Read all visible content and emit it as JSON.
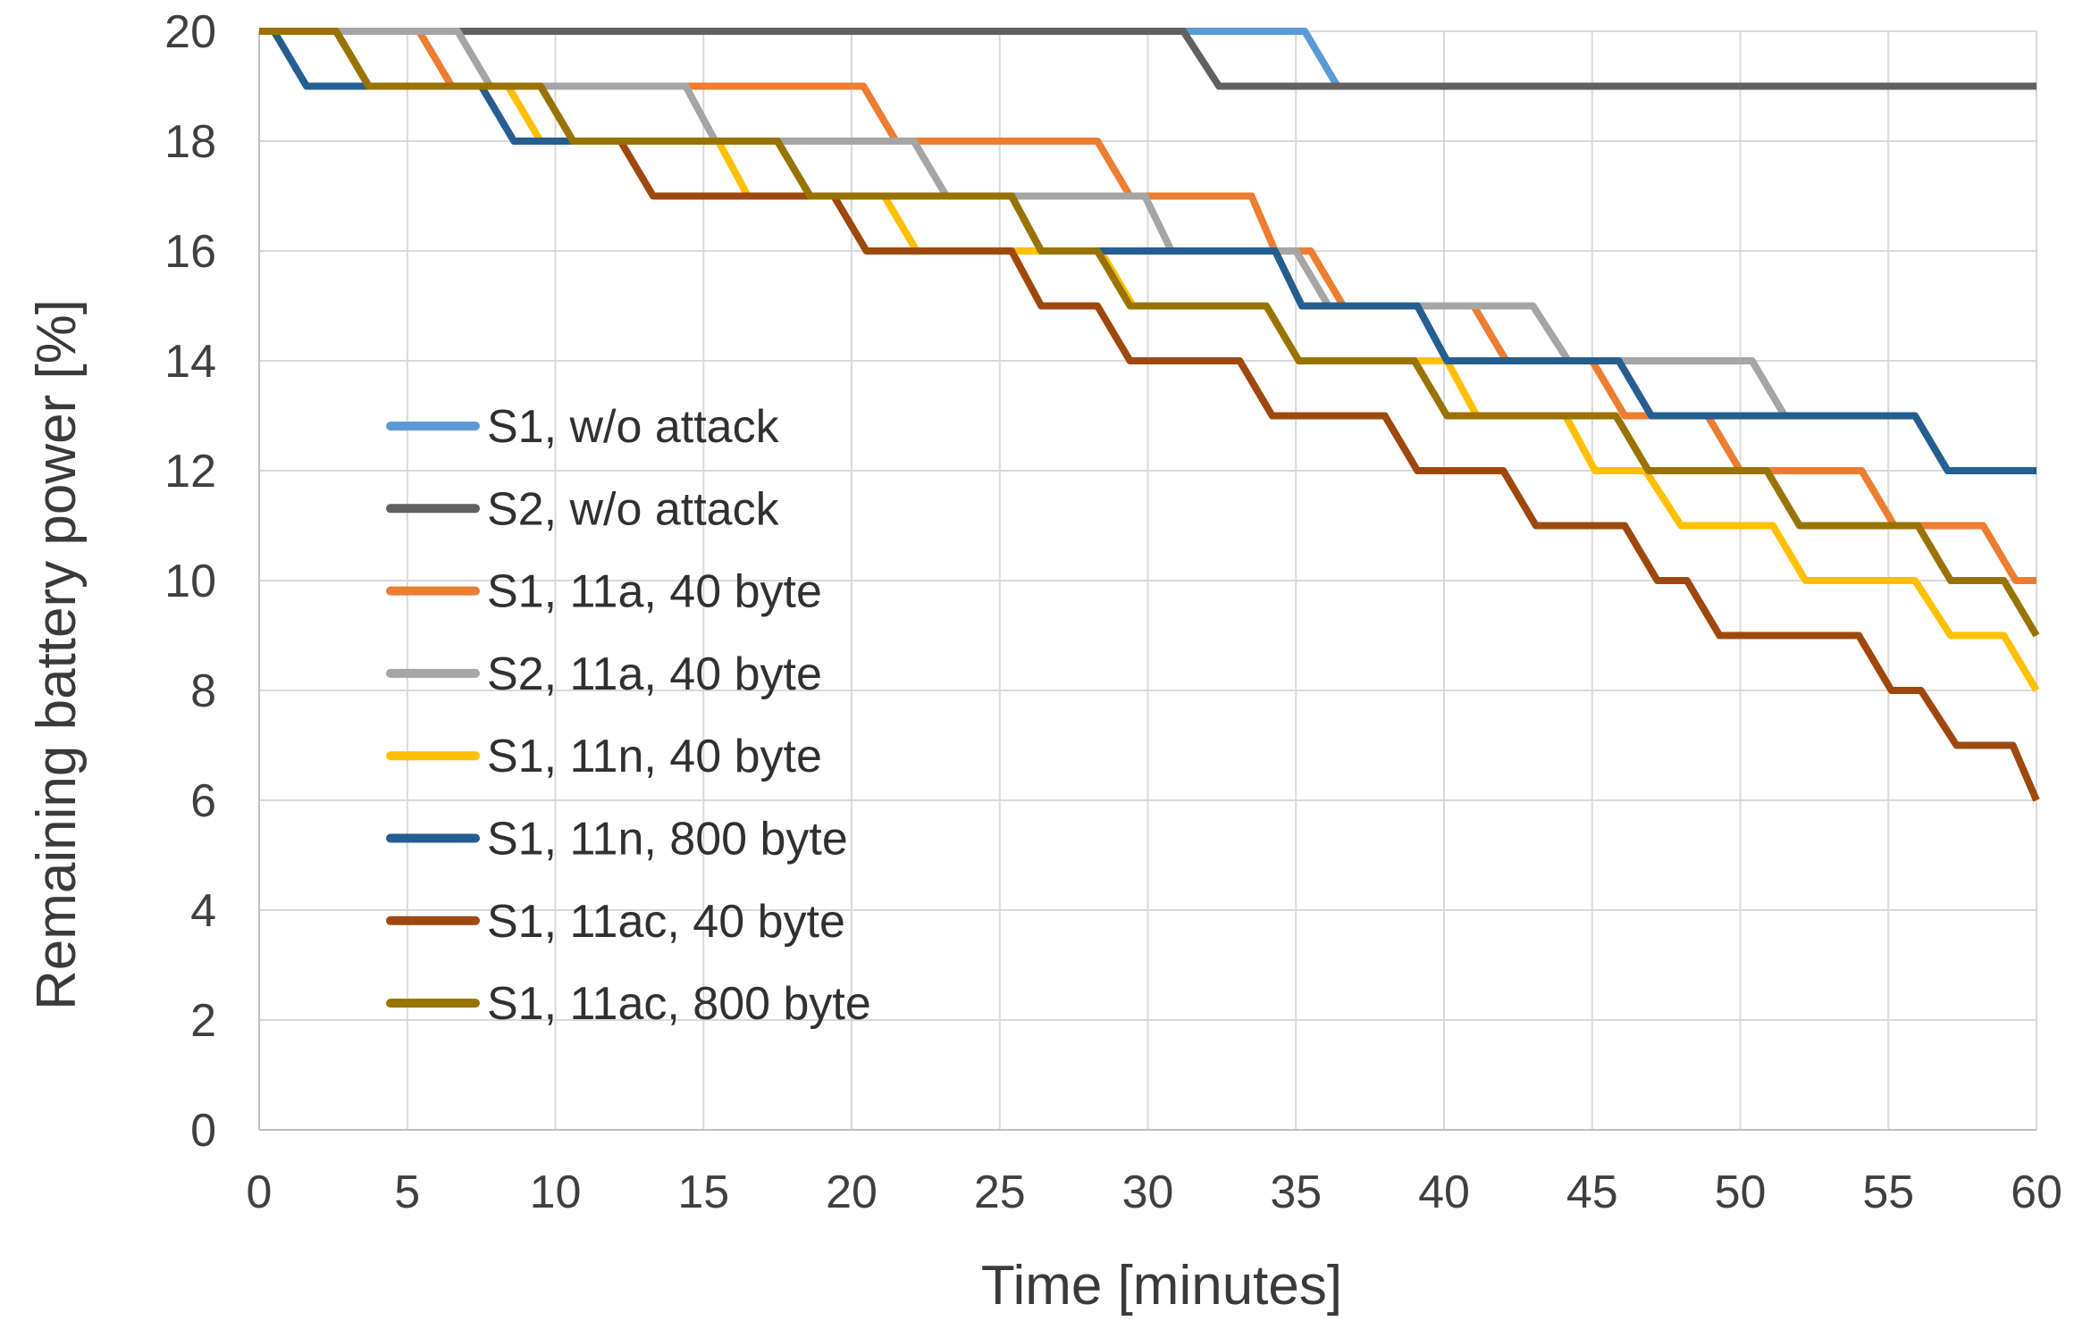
{
  "chart_data": {
    "type": "line",
    "title": "",
    "xlabel": "Time [minutes]",
    "ylabel": "Remaining battery power [%]",
    "xlim": [
      0,
      60
    ],
    "ylim": [
      0,
      20
    ],
    "grid": true,
    "legend_position": "inside-left",
    "x_tick_values": [
      0,
      5,
      10,
      15,
      20,
      25,
      30,
      35,
      40,
      45,
      50,
      55,
      60
    ],
    "x_ticks": [
      "0",
      "5",
      "10",
      "15",
      "20",
      "25",
      "30",
      "35",
      "40",
      "45",
      "50",
      "55",
      "60"
    ],
    "y_tick_values": [
      0,
      2,
      4,
      6,
      8,
      10,
      12,
      14,
      16,
      18,
      20
    ],
    "y_ticks": [
      "0",
      "2",
      "4",
      "6",
      "8",
      "10",
      "12",
      "14",
      "16",
      "18",
      "20"
    ],
    "series": [
      {
        "name": "S1, w/o attack",
        "color": "#5B9BD5",
        "points": [
          [
            0,
            20
          ],
          [
            35.3,
            20
          ],
          [
            36.4,
            19
          ],
          [
            60,
            19
          ]
        ]
      },
      {
        "name": "S2, w/o attack",
        "color": "#616161",
        "points": [
          [
            0,
            20
          ],
          [
            31.2,
            20
          ],
          [
            32.4,
            19
          ],
          [
            60,
            19
          ]
        ]
      },
      {
        "name": "S1, 11a, 40 byte",
        "color": "#ED7D31",
        "points": [
          [
            0,
            20
          ],
          [
            5.4,
            20
          ],
          [
            6.5,
            19
          ],
          [
            20.4,
            19
          ],
          [
            21.5,
            18
          ],
          [
            28.3,
            18
          ],
          [
            29.4,
            17
          ],
          [
            33.5,
            17
          ],
          [
            34.3,
            16
          ],
          [
            35.5,
            16
          ],
          [
            36.6,
            15
          ],
          [
            41,
            15
          ],
          [
            42.1,
            14
          ],
          [
            45,
            14
          ],
          [
            46.1,
            13
          ],
          [
            48.9,
            13
          ],
          [
            50,
            12
          ],
          [
            54.1,
            12
          ],
          [
            55.2,
            11
          ],
          [
            58.2,
            11
          ],
          [
            59.3,
            10
          ],
          [
            60,
            10
          ]
        ]
      },
      {
        "name": "S2, 11a, 40 byte",
        "color": "#A5A5A5",
        "points": [
          [
            0,
            20
          ],
          [
            6.7,
            20
          ],
          [
            7.8,
            19
          ],
          [
            14.4,
            19
          ],
          [
            15.4,
            18
          ],
          [
            22.1,
            18
          ],
          [
            23.2,
            17
          ],
          [
            29.9,
            17
          ],
          [
            30.8,
            16
          ],
          [
            35,
            16
          ],
          [
            36.1,
            15
          ],
          [
            43,
            15
          ],
          [
            44.2,
            14
          ],
          [
            50.4,
            14
          ],
          [
            51.5,
            13
          ],
          [
            55.9,
            13
          ],
          [
            57,
            12
          ],
          [
            60,
            12
          ]
        ]
      },
      {
        "name": "S1, 11n, 40 byte",
        "color": "#FFC000",
        "points": [
          [
            0,
            20
          ],
          [
            2.6,
            20
          ],
          [
            3.7,
            19
          ],
          [
            8.4,
            19
          ],
          [
            9.5,
            18
          ],
          [
            15.5,
            18
          ],
          [
            16.5,
            17
          ],
          [
            21.1,
            17
          ],
          [
            22.2,
            16
          ],
          [
            28.4,
            16
          ],
          [
            29.5,
            15
          ],
          [
            34,
            15
          ],
          [
            35.1,
            14
          ],
          [
            40.1,
            14
          ],
          [
            41.1,
            13
          ],
          [
            44.1,
            13
          ],
          [
            45.1,
            12
          ],
          [
            46.8,
            12
          ],
          [
            48,
            11
          ],
          [
            51.1,
            11
          ],
          [
            52.2,
            10
          ],
          [
            55.9,
            10
          ],
          [
            57.1,
            9
          ],
          [
            58.9,
            9
          ],
          [
            60,
            8
          ]
        ]
      },
      {
        "name": "S1, 11n, 800 byte",
        "color": "#255E91",
        "points": [
          [
            0,
            20
          ],
          [
            0.5,
            20
          ],
          [
            1.6,
            19
          ],
          [
            7.5,
            19
          ],
          [
            8.6,
            18
          ],
          [
            17.5,
            18
          ],
          [
            18.6,
            17
          ],
          [
            25.4,
            17
          ],
          [
            26.4,
            16
          ],
          [
            34.3,
            16
          ],
          [
            35.2,
            15
          ],
          [
            39.1,
            15
          ],
          [
            40.1,
            14
          ],
          [
            45.9,
            14
          ],
          [
            47,
            13
          ],
          [
            55.9,
            13
          ],
          [
            57,
            12
          ],
          [
            60,
            12
          ]
        ]
      },
      {
        "name": "S1, 11ac, 40 byte",
        "color": "#9E480E",
        "points": [
          [
            0,
            20
          ],
          [
            2.6,
            20
          ],
          [
            3.7,
            19
          ],
          [
            9.5,
            19
          ],
          [
            10.6,
            18
          ],
          [
            12.2,
            18
          ],
          [
            13.3,
            17
          ],
          [
            19.4,
            17
          ],
          [
            20.5,
            16
          ],
          [
            25.4,
            16
          ],
          [
            26.4,
            15
          ],
          [
            28.3,
            15
          ],
          [
            29.4,
            14
          ],
          [
            33.1,
            14
          ],
          [
            34.2,
            13
          ],
          [
            38,
            13
          ],
          [
            39.1,
            12
          ],
          [
            42,
            12
          ],
          [
            43.1,
            11
          ],
          [
            46.1,
            11
          ],
          [
            47.2,
            10
          ],
          [
            48.2,
            10
          ],
          [
            49.3,
            9
          ],
          [
            54,
            9
          ],
          [
            55.1,
            8
          ],
          [
            56.1,
            8
          ],
          [
            57.3,
            7
          ],
          [
            59.2,
            7
          ],
          [
            60,
            6
          ]
        ]
      },
      {
        "name": "S1, 11ac, 800 byte",
        "color": "#997300",
        "points": [
          [
            0,
            20
          ],
          [
            2.6,
            20
          ],
          [
            3.7,
            19
          ],
          [
            9.5,
            19
          ],
          [
            10.6,
            18
          ],
          [
            17.5,
            18
          ],
          [
            18.6,
            17
          ],
          [
            25.4,
            17
          ],
          [
            26.4,
            16
          ],
          [
            28.3,
            16
          ],
          [
            29.4,
            15
          ],
          [
            34,
            15
          ],
          [
            35.1,
            14
          ],
          [
            39,
            14
          ],
          [
            40.1,
            13
          ],
          [
            45.8,
            13
          ],
          [
            46.9,
            12
          ],
          [
            50.9,
            12
          ],
          [
            52,
            11
          ],
          [
            56,
            11
          ],
          [
            57.1,
            10
          ],
          [
            58.9,
            10
          ],
          [
            60,
            9
          ]
        ]
      }
    ]
  },
  "style_colors": {
    "gridline": "#D9D9D9",
    "axis_line": "#BFBFBF",
    "tick_text": "#3F3F3F",
    "title_text": "#3A3A3A",
    "background": "#FFFFFF"
  }
}
